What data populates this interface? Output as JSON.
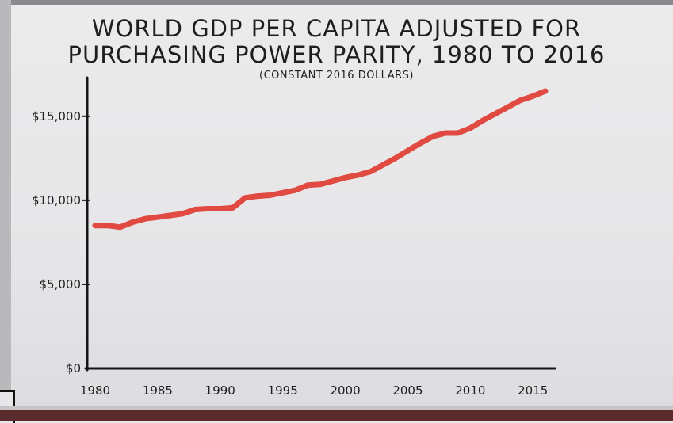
{
  "chart_data": {
    "type": "line",
    "title": "WORLD GDP PER CAPITA ADJUSTED FOR PURCHASING POWER PARITY, 1980 TO 2016",
    "subtitle": "(CONSTANT 2016 DOLLARS)",
    "xlabel": "",
    "ylabel": "",
    "xlim": [
      1980,
      2016
    ],
    "ylim": [
      0,
      16500
    ],
    "x_ticks": [
      1980,
      1985,
      1990,
      1995,
      2000,
      2005,
      2010,
      2015
    ],
    "y_ticks": [
      0,
      5000,
      10000,
      15000
    ],
    "y_tick_labels": [
      "$0",
      "$5,000",
      "$10,000",
      "$15,000"
    ],
    "grid": false,
    "series": [
      {
        "color": "#e04a41",
        "x": [
          1980,
          1981,
          1982,
          1983,
          1984,
          1985,
          1986,
          1987,
          1988,
          1989,
          1990,
          1991,
          1992,
          1993,
          1994,
          1995,
          1996,
          1997,
          1998,
          1999,
          2000,
          2001,
          2002,
          2003,
          2004,
          2005,
          2006,
          2007,
          2008,
          2009,
          2010,
          2011,
          2012,
          2013,
          2014,
          2015,
          2016
        ],
        "values": [
          8500,
          8500,
          8400,
          8700,
          8900,
          9000,
          9100,
          9200,
          9450,
          9500,
          9500,
          9550,
          10150,
          10250,
          10300,
          10450,
          10600,
          10900,
          10950,
          11150,
          11350,
          11500,
          11700,
          12100,
          12500,
          12950,
          13400,
          13800,
          14000,
          14000,
          14300,
          14750,
          15150,
          15550,
          15950,
          16200,
          16500
        ]
      }
    ]
  },
  "colors": {
    "line": "#e04a41",
    "axis": "#151517",
    "background": "#e9e7e8"
  }
}
